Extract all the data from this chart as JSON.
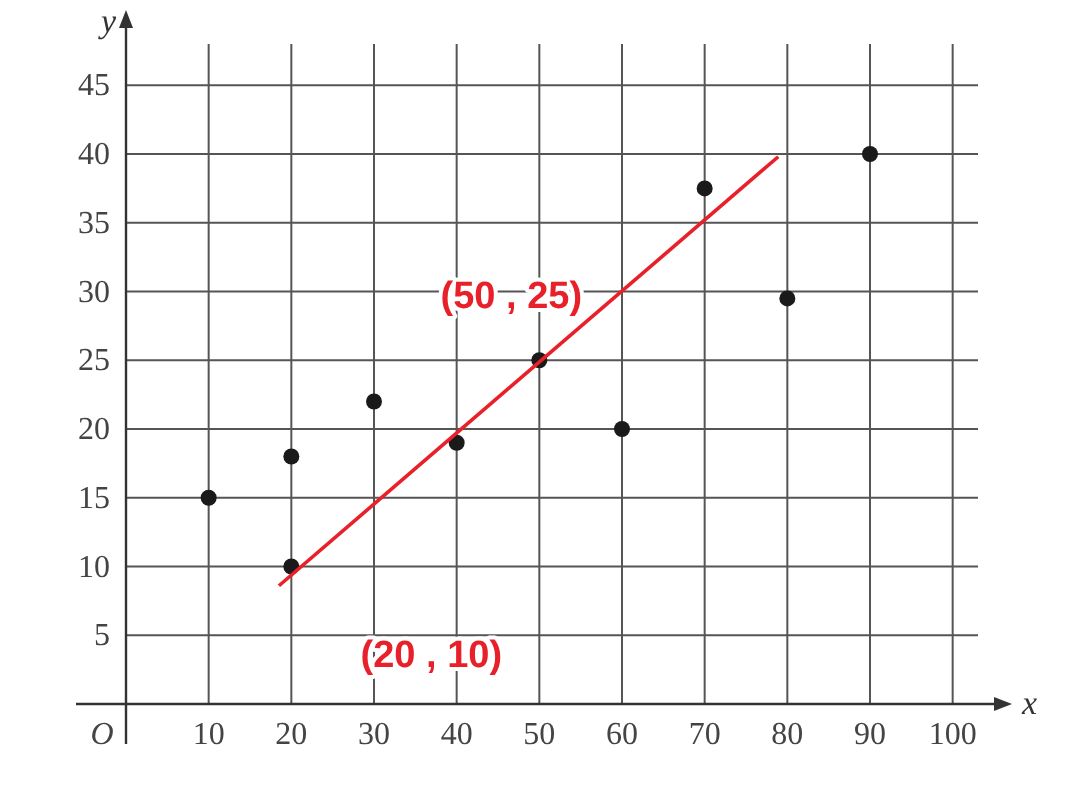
{
  "chart_data": {
    "type": "scatter",
    "xlabel": "x",
    "ylabel": "y",
    "xlim": [
      0,
      105
    ],
    "ylim": [
      0,
      48
    ],
    "xticks": [
      10,
      20,
      30,
      40,
      50,
      60,
      70,
      80,
      90,
      100
    ],
    "yticks": [
      5,
      10,
      15,
      20,
      25,
      30,
      35,
      40,
      45
    ],
    "grid": true,
    "marker": "circle",
    "series": [
      {
        "color": "#1a1a1a",
        "x": [
          10,
          20,
          20,
          30,
          40,
          50,
          60,
          70,
          80,
          90
        ],
        "values": [
          15,
          18,
          10,
          22,
          19,
          25,
          20,
          37.5,
          29.5,
          40
        ]
      },
      {
        "type": "line",
        "color": "#e8202a",
        "x": [
          18.5,
          78.9
        ],
        "values": [
          8.6,
          39.8
        ],
        "line_style": "solid",
        "marker": "none"
      }
    ],
    "annotations": [
      "O",
      {
        "text": "(50 , 25)",
        "x": 50,
        "y": 25
      },
      {
        "text": "(20 , 10)",
        "x": 20,
        "y": 10
      }
    ]
  }
}
